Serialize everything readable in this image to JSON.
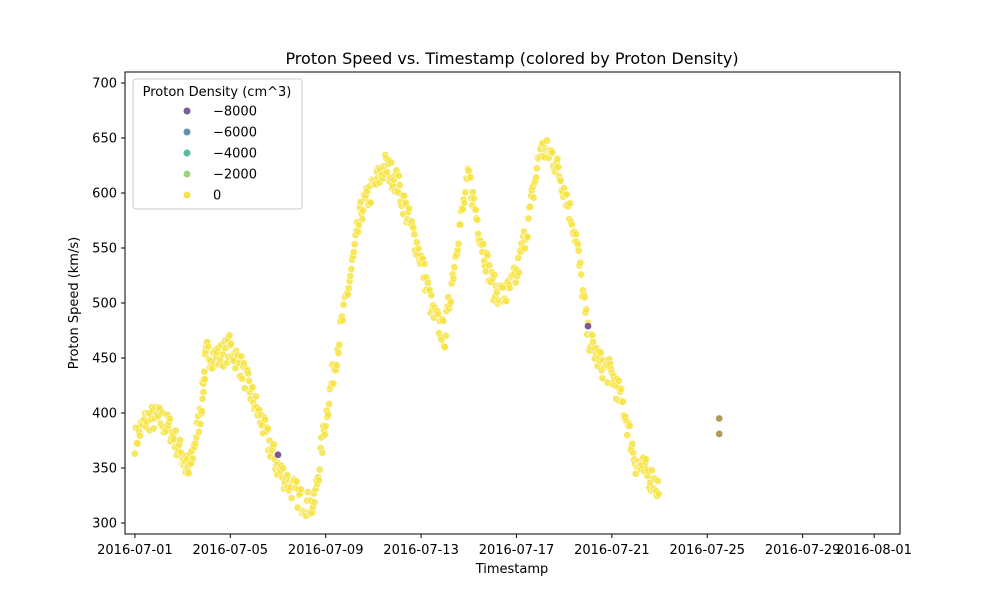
{
  "chart_data": {
    "type": "scatter",
    "title": "Proton Speed vs. Timestamp (colored by Proton Density)",
    "xlabel": "Timestamp",
    "ylabel": "Proton Speed (km/s)",
    "x_ticks": [
      "2016-07-01",
      "2016-07-05",
      "2016-07-09",
      "2016-07-13",
      "2016-07-17",
      "2016-07-21",
      "2016-07-25",
      "2016-07-29",
      "2016-08-01"
    ],
    "y_ticks": [
      300,
      350,
      400,
      450,
      500,
      550,
      600,
      650,
      700
    ],
    "xlim": [
      "2016-06-30T14:00",
      "2016-08-02T02:00"
    ],
    "ylim": [
      290,
      710
    ],
    "grid": false,
    "legend": {
      "title": "Proton Density (cm^3)",
      "placement": "top-left",
      "entries": [
        {
          "label": "−8000",
          "color": "#7a5f9a"
        },
        {
          "label": "−6000",
          "color": "#5b95a6"
        },
        {
          "label": "−4000",
          "color": "#58bf9e"
        },
        {
          "label": "−2000",
          "color": "#9dd57c"
        },
        {
          "label": "0",
          "color": "#f4e54a"
        }
      ]
    },
    "colors": {
      "normal": "#f7e444",
      "outline": "#ffffff",
      "low_density": "#7d5a8d",
      "mid_density": "#b09a5e"
    },
    "series": [
      {
        "color_key": "normal",
        "profile": [
          [
            "2016-07-01T00:00",
            375
          ],
          [
            "2016-07-01T12:00",
            395
          ],
          [
            "2016-07-02T00:00",
            395
          ],
          [
            "2016-07-02T12:00",
            385
          ],
          [
            "2016-07-03T00:00",
            360
          ],
          [
            "2016-07-03T06:00",
            345
          ],
          [
            "2016-07-03T18:00",
            400
          ],
          [
            "2016-07-04T00:00",
            455
          ],
          [
            "2016-07-04T12:00",
            450
          ],
          [
            "2016-07-05T00:00",
            460
          ],
          [
            "2016-07-05T12:00",
            440
          ],
          [
            "2016-07-06T00:00",
            410
          ],
          [
            "2016-07-06T12:00",
            380
          ],
          [
            "2016-07-07T00:00",
            350
          ],
          [
            "2016-07-07T12:00",
            335
          ],
          [
            "2016-07-08T00:00",
            320
          ],
          [
            "2016-07-08T12:00",
            315
          ],
          [
            "2016-07-09T00:00",
            395
          ],
          [
            "2016-07-09T12:00",
            460
          ],
          [
            "2016-07-10T00:00",
            520
          ],
          [
            "2016-07-10T12:00",
            585
          ],
          [
            "2016-07-11T00:00",
            605
          ],
          [
            "2016-07-11T12:00",
            625
          ],
          [
            "2016-07-12T00:00",
            610
          ],
          [
            "2016-07-12T12:00",
            575
          ],
          [
            "2016-07-13T00:00",
            540
          ],
          [
            "2016-07-13T12:00",
            490
          ],
          [
            "2016-07-14T00:00",
            470
          ],
          [
            "2016-07-14T12:00",
            555
          ],
          [
            "2016-07-15T00:00",
            615
          ],
          [
            "2016-07-15T12:00",
            560
          ],
          [
            "2016-07-16T00:00",
            515
          ],
          [
            "2016-07-16T12:00",
            505
          ],
          [
            "2016-07-17T00:00",
            525
          ],
          [
            "2016-07-17T12:00",
            575
          ],
          [
            "2016-07-18T00:00",
            640
          ],
          [
            "2016-07-18T12:00",
            635
          ],
          [
            "2016-07-19T00:00",
            605
          ],
          [
            "2016-07-19T12:00",
            560
          ],
          [
            "2016-07-20T00:00",
            470
          ],
          [
            "2016-07-20T12:00",
            445
          ],
          [
            "2016-07-21T00:00",
            435
          ],
          [
            "2016-07-21T12:00",
            405
          ],
          [
            "2016-07-22T00:00",
            355
          ],
          [
            "2016-07-22T12:00",
            345
          ],
          [
            "2016-07-23T00:00",
            330
          ]
        ]
      }
    ],
    "outliers": [
      {
        "x": "2016-07-07T00:00",
        "y": 362,
        "color_key": "low_density"
      },
      {
        "x": "2016-07-20T00:00",
        "y": 479,
        "color_key": "low_density"
      },
      {
        "x": "2016-07-25T12:00",
        "y": 395,
        "color_key": "mid_density"
      },
      {
        "x": "2016-07-25T12:00",
        "y": 381,
        "color_key": "mid_density"
      }
    ]
  }
}
